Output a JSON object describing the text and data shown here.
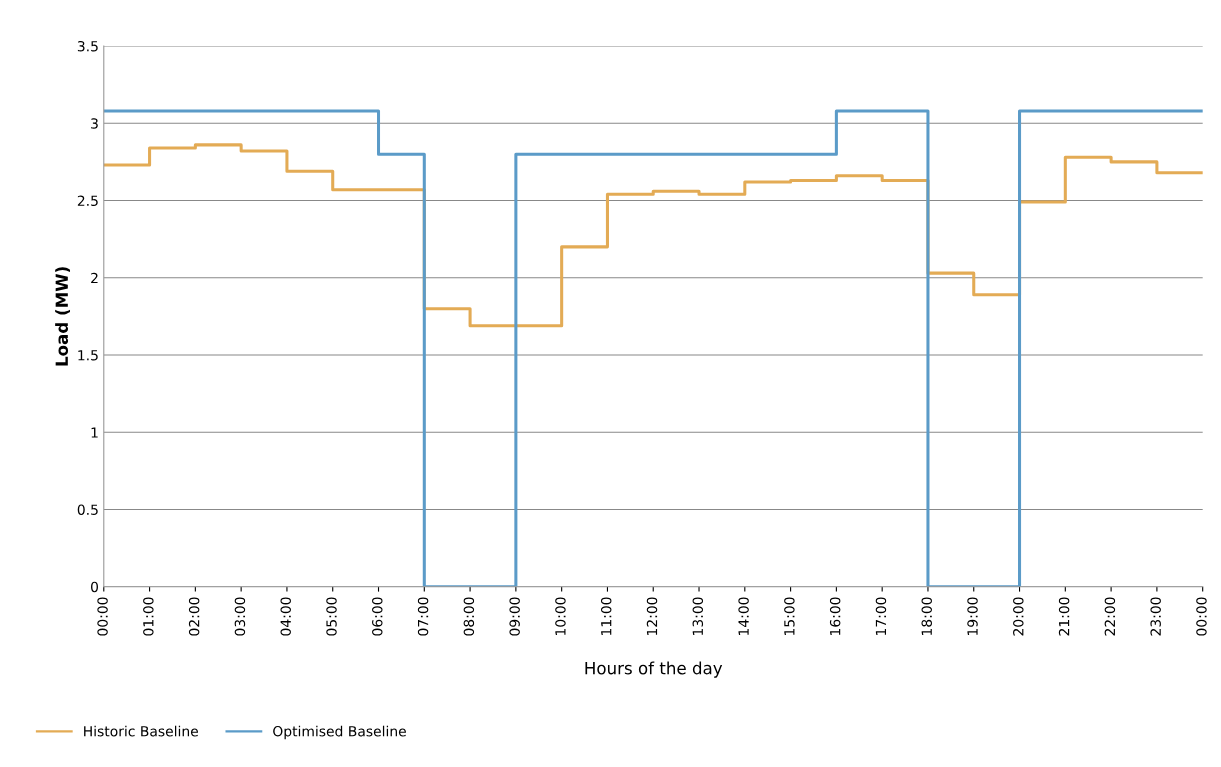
{
  "chart_data": {
    "type": "step",
    "xlabel": "Hours of the day",
    "ylabel": "Load (MW)",
    "x": [
      0,
      1,
      2,
      3,
      4,
      5,
      6,
      7,
      8,
      9,
      10,
      11,
      12,
      13,
      14,
      15,
      16,
      17,
      18,
      19,
      20,
      21,
      22,
      23,
      24
    ],
    "xlim": [
      0,
      24
    ],
    "xticks": [
      {
        "value": 0,
        "label": "00:00"
      },
      {
        "value": 1,
        "label": "01:00"
      },
      {
        "value": 2,
        "label": "02:00"
      },
      {
        "value": 3,
        "label": "03:00"
      },
      {
        "value": 4,
        "label": "04:00"
      },
      {
        "value": 5,
        "label": "05:00"
      },
      {
        "value": 6,
        "label": "06:00"
      },
      {
        "value": 7,
        "label": "07:00"
      },
      {
        "value": 8,
        "label": "08:00"
      },
      {
        "value": 9,
        "label": "09:00"
      },
      {
        "value": 10,
        "label": "10:00"
      },
      {
        "value": 11,
        "label": "11:00"
      },
      {
        "value": 12,
        "label": "12:00"
      },
      {
        "value": 13,
        "label": "13:00"
      },
      {
        "value": 14,
        "label": "14:00"
      },
      {
        "value": 15,
        "label": "15:00"
      },
      {
        "value": 16,
        "label": "16:00"
      },
      {
        "value": 17,
        "label": "17:00"
      },
      {
        "value": 18,
        "label": "18:00"
      },
      {
        "value": 19,
        "label": "19:00"
      },
      {
        "value": 20,
        "label": "20:00"
      },
      {
        "value": 21,
        "label": "21:00"
      },
      {
        "value": 22,
        "label": "22:00"
      },
      {
        "value": 23,
        "label": "23:00"
      },
      {
        "value": 24,
        "label": "00:00"
      }
    ],
    "ylim": [
      0,
      3.5
    ],
    "yticks": [
      0,
      0.5,
      1,
      1.5,
      2,
      2.5,
      3,
      3.5
    ],
    "grid": "y",
    "legend": "bottom left",
    "marker": "none",
    "line_style": "solid",
    "series": [
      {
        "name": "Historic Baseline",
        "color": "#e3ab55",
        "values": [
          2.73,
          2.84,
          2.86,
          2.82,
          2.69,
          2.57,
          2.57,
          1.8,
          1.69,
          1.69,
          2.2,
          2.54,
          2.56,
          2.54,
          2.62,
          2.63,
          2.66,
          2.63,
          2.03,
          1.89,
          2.49,
          2.78,
          2.75,
          2.68,
          2.68
        ]
      },
      {
        "name": "Optimised Baseline",
        "color": "#5b9bc8",
        "values": [
          3.08,
          3.08,
          3.08,
          3.08,
          3.08,
          3.08,
          2.8,
          0,
          0,
          2.8,
          2.8,
          2.8,
          2.8,
          2.8,
          2.8,
          2.8,
          3.08,
          3.08,
          0,
          0,
          3.08,
          3.08,
          3.08,
          3.08,
          3.08
        ]
      }
    ]
  }
}
